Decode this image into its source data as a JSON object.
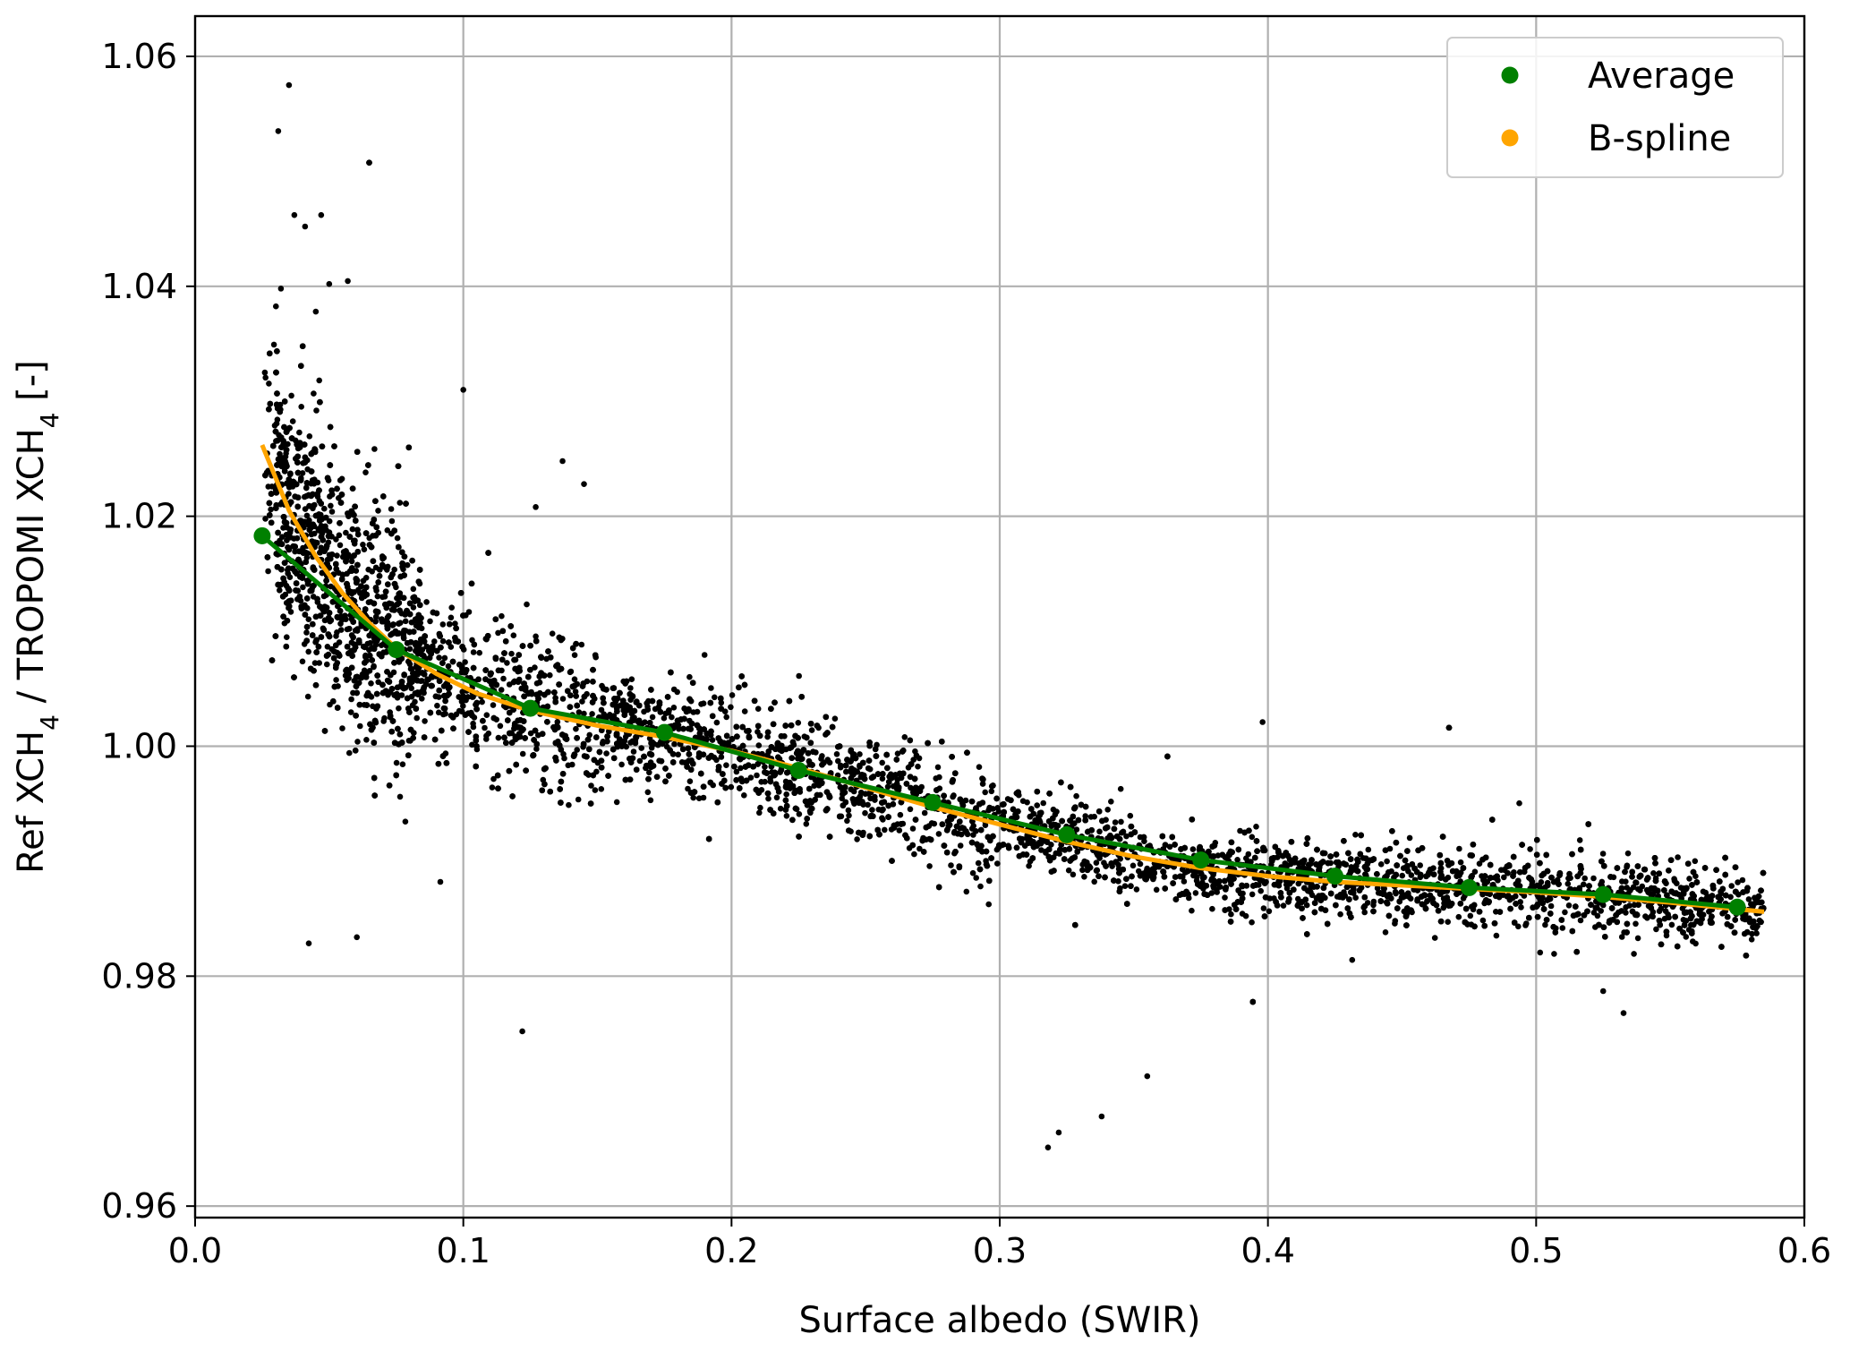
{
  "chart_data": {
    "type": "scatter",
    "xlabel": "Surface albedo (SWIR)",
    "ylabel": "Ref XCH₄ / TROPOMI XCH₄ [-]",
    "xlim": [
      0.0,
      0.6
    ],
    "ylim": [
      0.959,
      1.0635
    ],
    "x_ticks": [
      0.0,
      0.1,
      0.2,
      0.3,
      0.4,
      0.5,
      0.6
    ],
    "x_tick_labels": [
      "0.0",
      "0.1",
      "0.2",
      "0.3",
      "0.4",
      "0.5",
      "0.6"
    ],
    "y_ticks": [
      0.96,
      0.98,
      1.0,
      1.02,
      1.04,
      1.06
    ],
    "y_tick_labels": [
      "0.96",
      "0.98",
      "1.00",
      "1.02",
      "1.04",
      "1.06"
    ],
    "grid": true,
    "legend_position": "top-right",
    "series": [
      {
        "name": "Average",
        "color": "#008000",
        "style": "line-with-markers",
        "x": [
          0.025,
          0.075,
          0.125,
          0.175,
          0.225,
          0.275,
          0.325,
          0.375,
          0.425,
          0.475,
          0.525,
          0.575
        ],
        "y": [
          1.0183,
          1.0084,
          1.0033,
          1.0012,
          0.9979,
          0.9951,
          0.9923,
          0.9901,
          0.9887,
          0.9877,
          0.9871,
          0.986
        ]
      },
      {
        "name": "B-spline",
        "color": "#ffa500",
        "style": "line",
        "x": [
          0.025,
          0.035,
          0.045,
          0.055,
          0.065,
          0.075,
          0.09,
          0.105,
          0.125,
          0.15,
          0.175,
          0.2,
          0.225,
          0.25,
          0.275,
          0.3,
          0.325,
          0.35,
          0.375,
          0.4,
          0.425,
          0.45,
          0.475,
          0.5,
          0.525,
          0.55,
          0.585
        ],
        "y": [
          1.0262,
          1.0205,
          1.0165,
          1.0133,
          1.0107,
          1.0085,
          1.0063,
          1.0046,
          1.0031,
          1.0018,
          1.0008,
          0.9996,
          0.9981,
          0.9964,
          0.9947,
          0.9932,
          0.9917,
          0.9904,
          0.9894,
          0.9887,
          0.9882,
          0.9879,
          0.9876,
          0.9873,
          0.9869,
          0.9864,
          0.9856
        ]
      },
      {
        "name": "",
        "color": "#000000",
        "style": "scatter-cloud",
        "description_points": "dense cloud of individual observations following the trend",
        "x": [
          0.026,
          0.031,
          0.035,
          0.037,
          0.041,
          0.047,
          0.05,
          0.032,
          0.045,
          0.1,
          0.122,
          0.318,
          0.322,
          0.338,
          0.355,
          0.398,
          0.145,
          0.525,
          0.127,
          0.137
        ],
        "y": [
          1.0325,
          1.0535,
          1.0575,
          1.0462,
          1.0452,
          1.0462,
          1.0402,
          1.0398,
          1.0378,
          1.031,
          0.9752,
          0.9651,
          0.9664,
          0.9678,
          0.9713,
          1.0021,
          1.0228,
          0.9787,
          1.0208,
          1.0248
        ]
      }
    ]
  }
}
